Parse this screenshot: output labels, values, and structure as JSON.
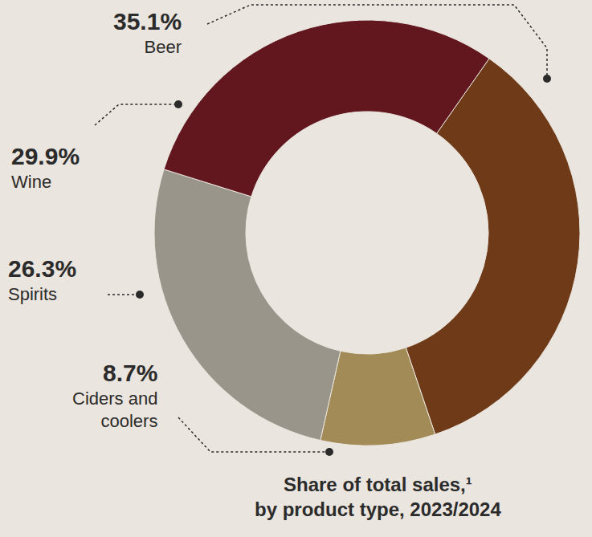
{
  "chart_data": {
    "type": "pie",
    "title": "Share of total sales,¹ by product type, 2023/2024",
    "categories": [
      "Beer",
      "Ciders and coolers",
      "Spirits",
      "Wine"
    ],
    "values": [
      35.1,
      8.7,
      26.3,
      29.9
    ],
    "value_labels": [
      "35.1%",
      "8.7%",
      "26.3%",
      "29.9%"
    ],
    "colors": [
      "#6E3A18",
      "#A38B57",
      "#9A958A",
      "#62161E"
    ],
    "data_labels": true
  }
}
